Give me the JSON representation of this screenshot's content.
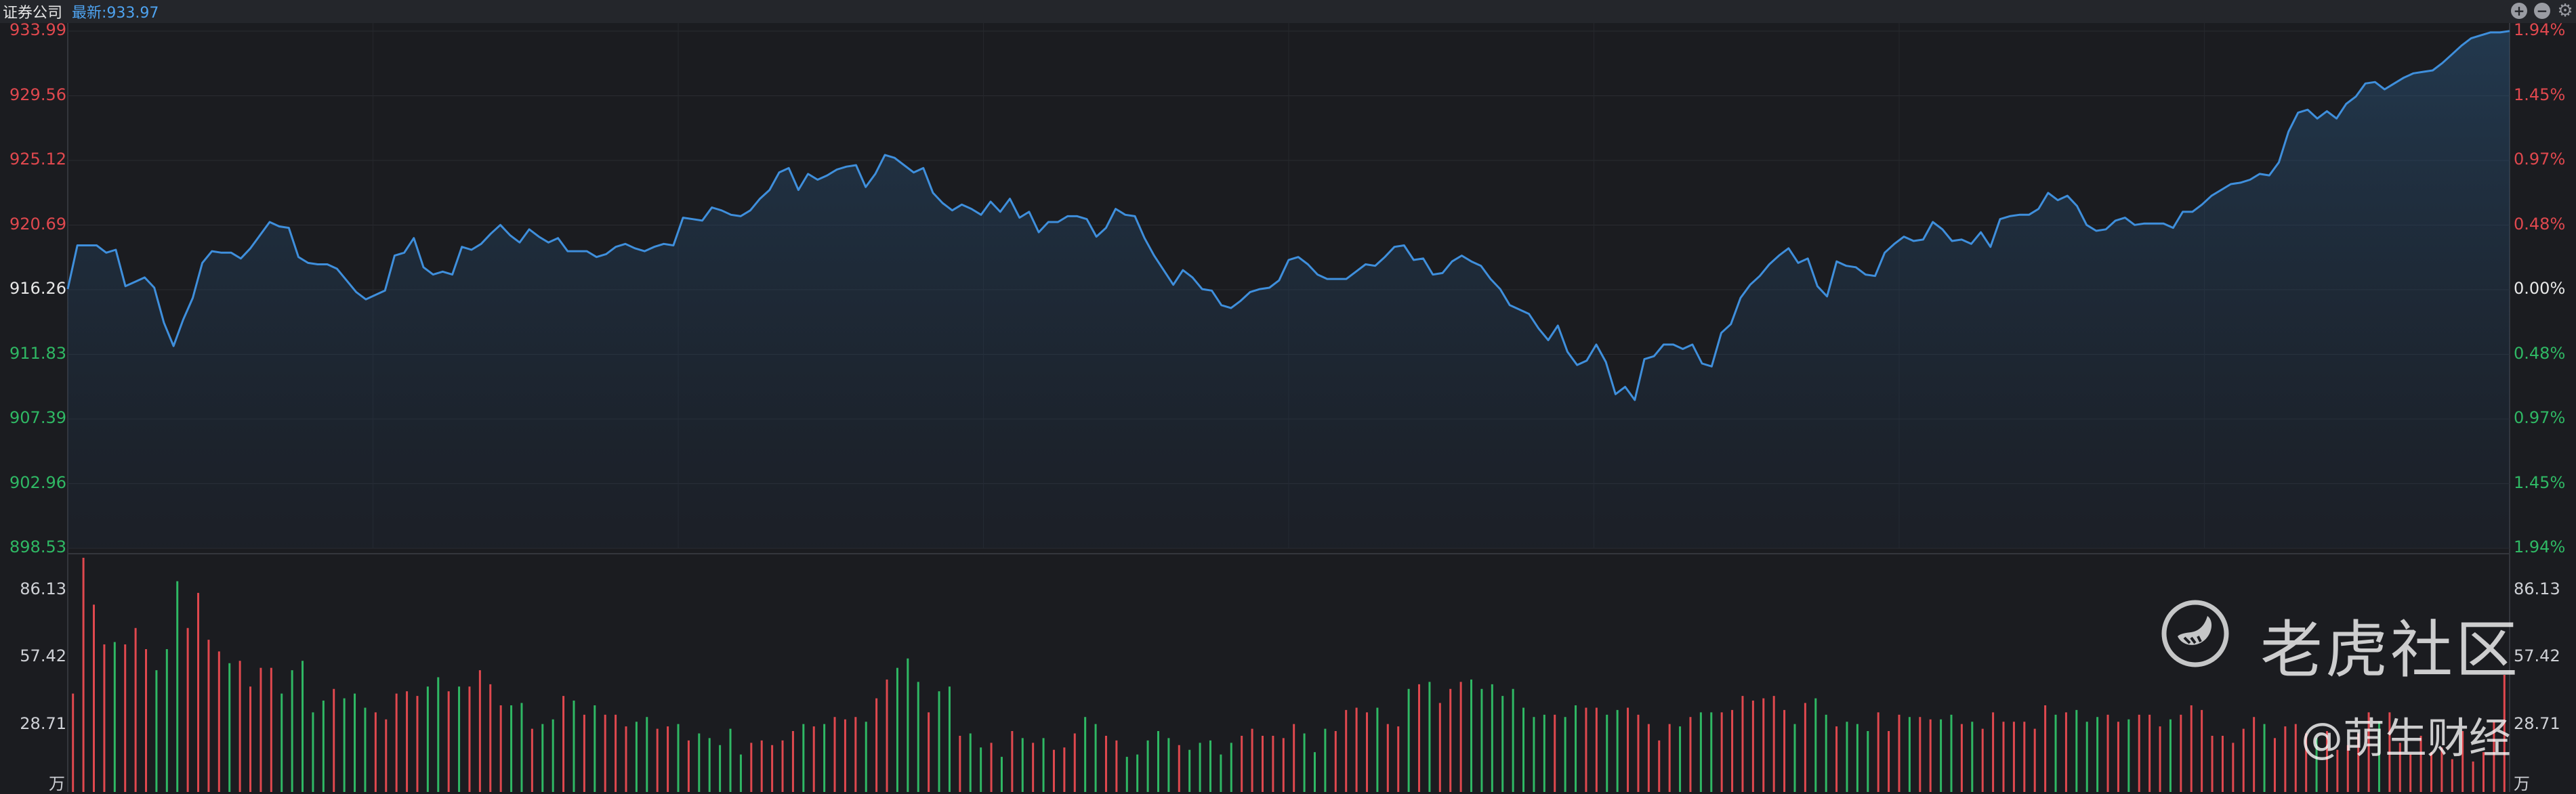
{
  "header": {
    "title": "证券公司",
    "latest": "最新:933.97"
  },
  "controls": {
    "zoom_in": "+",
    "zoom_out": "−",
    "settings": "⚙"
  },
  "colors": {
    "up": "#e0484e",
    "down": "#2fb864",
    "neutral": "#e8e8e8",
    "line": "#3f8fdc"
  },
  "price_axis": {
    "left_ticks": [
      "933.99",
      "929.56",
      "925.12",
      "920.69",
      "916.26",
      "911.83",
      "907.39",
      "902.96",
      "898.53"
    ],
    "right_ticks": [
      "1.94%",
      "1.45%",
      "0.97%",
      "0.48%",
      "0.00%",
      "0.48%",
      "0.97%",
      "1.45%",
      "1.94%"
    ],
    "tick_status": [
      "up",
      "up",
      "up",
      "up",
      "neutral",
      "down",
      "down",
      "down",
      "down"
    ]
  },
  "volume_axis": {
    "left_ticks": [
      "86.13",
      "57.42",
      "28.71"
    ],
    "right_ticks": [
      "86.13",
      "57.42",
      "28.71"
    ],
    "unit": "万"
  },
  "watermark": {
    "brand": "老虎社区",
    "author": "@萌生财经"
  },
  "chart_data": [
    {
      "type": "line",
      "title": "",
      "ylim": [
        898.53,
        933.99
      ],
      "base": 916.26,
      "grid": true,
      "series": [
        {
          "values": [
            916.3,
            919.3,
            919.3,
            919.3,
            918.8,
            919.0,
            916.5,
            916.8,
            917.1,
            916.4,
            914.0,
            912.4,
            914.2,
            915.7,
            918.1,
            918.9,
            918.8,
            918.8,
            918.4,
            919.1,
            920.0,
            920.9,
            920.6,
            920.5,
            918.5,
            918.1,
            918.0,
            918.0,
            917.7,
            916.9,
            916.1,
            915.6,
            915.9,
            916.2,
            918.6,
            918.8,
            919.8,
            917.8,
            917.3,
            917.5,
            917.3,
            919.2,
            919.0,
            919.4,
            920.1,
            920.7,
            920.0,
            919.5,
            920.4,
            919.9,
            919.5,
            919.8,
            918.9,
            918.9,
            918.9,
            918.5,
            918.7,
            919.2,
            919.4,
            919.1,
            918.9,
            919.2,
            919.4,
            919.3,
            921.2,
            921.1,
            921.0,
            921.9,
            921.7,
            921.4,
            921.3,
            921.7,
            922.5,
            923.1,
            924.3,
            924.6,
            923.1,
            924.2,
            923.8,
            924.1,
            924.5,
            924.7,
            924.8,
            923.3,
            924.2,
            925.5,
            925.3,
            924.8,
            924.3,
            924.6,
            922.9,
            922.2,
            921.7,
            922.1,
            921.8,
            921.4,
            922.3,
            921.6,
            922.5,
            921.2,
            921.6,
            920.2,
            920.9,
            920.9,
            921.3,
            921.3,
            921.1,
            919.9,
            920.5,
            921.8,
            921.4,
            921.3,
            919.8,
            918.6,
            917.6,
            916.6,
            917.6,
            917.1,
            916.3,
            916.2,
            915.2,
            915.0,
            915.5,
            916.1,
            916.3,
            916.4,
            916.9,
            918.3,
            918.5,
            918.0,
            917.3,
            917.0,
            917.0,
            917.0,
            917.5,
            918.0,
            917.9,
            918.5,
            919.2,
            919.3,
            918.3,
            918.4,
            917.3,
            917.4,
            918.2,
            918.6,
            918.2,
            917.9,
            917.0,
            916.3,
            915.2,
            914.9,
            914.6,
            913.6,
            912.8,
            913.8,
            912.0,
            911.1,
            911.4,
            912.5,
            911.3,
            909.1,
            909.6,
            908.7,
            911.5,
            911.7,
            912.5,
            912.5,
            912.2,
            912.5,
            911.2,
            911.0,
            913.3,
            913.9,
            915.7,
            916.6,
            917.2,
            918.0,
            918.6,
            919.1,
            918.1,
            918.4,
            916.5,
            915.8,
            918.2,
            917.9,
            917.8,
            917.3,
            917.2,
            918.8,
            919.4,
            919.9,
            919.6,
            919.7,
            920.9,
            920.4,
            919.6,
            919.7,
            919.4,
            920.2,
            919.2,
            921.1,
            921.3,
            921.4,
            921.4,
            921.8,
            922.9,
            922.4,
            922.7,
            922.0,
            920.7,
            920.3,
            920.4,
            921.0,
            921.2,
            920.7,
            920.8,
            920.8,
            920.8,
            920.5,
            921.6,
            921.6,
            922.1,
            922.7,
            923.1,
            923.5,
            923.6,
            923.8,
            924.2,
            924.1,
            925.0,
            927.1,
            928.4,
            928.6,
            928.0,
            928.5,
            928.0,
            929.0,
            929.5,
            930.4,
            930.5,
            930.0,
            930.4,
            930.8,
            931.1,
            931.2,
            931.3,
            931.8,
            932.4,
            933.0,
            933.5,
            933.7,
            933.9,
            933.9,
            934.0
          ]
        }
      ]
    },
    {
      "type": "bar",
      "title": "",
      "ylim": [
        0,
        100
      ],
      "unit": "万",
      "series": [
        {
          "values": [
            42,
            100,
            80,
            63,
            64,
            63,
            70,
            61,
            52,
            61,
            90,
            70,
            85,
            65,
            60,
            55,
            56,
            45,
            53,
            53,
            42,
            52,
            56,
            34,
            39,
            44,
            40,
            42,
            36,
            34,
            31,
            42,
            43,
            41,
            45,
            49,
            43,
            45,
            45,
            52,
            46,
            37,
            37,
            38,
            27,
            29,
            31,
            41,
            39,
            33,
            37,
            33,
            33,
            28,
            30,
            32,
            27,
            28,
            29,
            22,
            25,
            23,
            20,
            27,
            16,
            21,
            22,
            20,
            22,
            26,
            29,
            28,
            29,
            32,
            31,
            32,
            30,
            40,
            48,
            53,
            57,
            47,
            34,
            43,
            45,
            24,
            25,
            19,
            21,
            15,
            26,
            23,
            21,
            23,
            18,
            19,
            25,
            32,
            29,
            24,
            22,
            15,
            16,
            22,
            26,
            23,
            20,
            18,
            21,
            22,
            16,
            21,
            24,
            27,
            24,
            24,
            23,
            29,
            25,
            17,
            27,
            26,
            35,
            36,
            34,
            36,
            29,
            28,
            44,
            46,
            47,
            38,
            44,
            47,
            48,
            44,
            46,
            41,
            44,
            36,
            32,
            33,
            33,
            32,
            37,
            36,
            36,
            33,
            35,
            36,
            33,
            29,
            22,
            29,
            28,
            32,
            34,
            34,
            34,
            35,
            41,
            39,
            40,
            41,
            35,
            29,
            38,
            40,
            33,
            28,
            30,
            29,
            26,
            34,
            26,
            33,
            32,
            32,
            31,
            31,
            33,
            29,
            30,
            27,
            34,
            30,
            30,
            30,
            27,
            37,
            33,
            34,
            35,
            30,
            32,
            33,
            30,
            31,
            33,
            33,
            28,
            31,
            33,
            37,
            35,
            24,
            24,
            21,
            27,
            32,
            29,
            23,
            28,
            29,
            25,
            23,
            26,
            18,
            20,
            25,
            34,
            30,
            34,
            21,
            16,
            24,
            17,
            19,
            14,
            26,
            13,
            17,
            30,
            50
          ]
        }
      ]
    }
  ]
}
